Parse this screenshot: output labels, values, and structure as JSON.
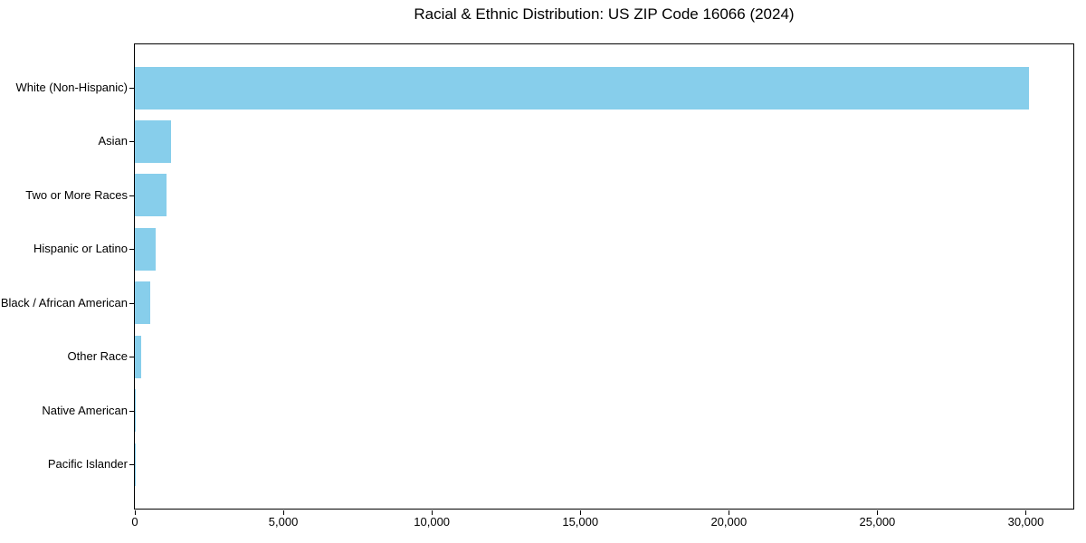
{
  "page": {
    "background_color": "#ffffff"
  },
  "chart_data": {
    "type": "bar",
    "orientation": "horizontal",
    "title": "Racial & Ethnic Distribution: US ZIP Code 16066 (2024)",
    "categories": [
      "White (Non-Hispanic)",
      "Asian",
      "Two or More Races",
      "Hispanic or Latino",
      "Black / African American",
      "Other Race",
      "Native American",
      "Pacific Islander"
    ],
    "values": [
      30100,
      1230,
      1060,
      710,
      530,
      210,
      25,
      10
    ],
    "xlabel": "",
    "ylabel": "",
    "xlim": [
      0,
      31600
    ],
    "xticks": [
      0,
      5000,
      10000,
      15000,
      20000,
      25000,
      30000
    ],
    "xtick_labels": [
      "0",
      "5,000",
      "10,000",
      "15,000",
      "20,000",
      "25,000",
      "30,000"
    ],
    "bar_color": "#87CEEB",
    "axis_color": "#000000",
    "text_color": "#000000",
    "grid": false,
    "legend": "none",
    "sort_order": "descending"
  }
}
